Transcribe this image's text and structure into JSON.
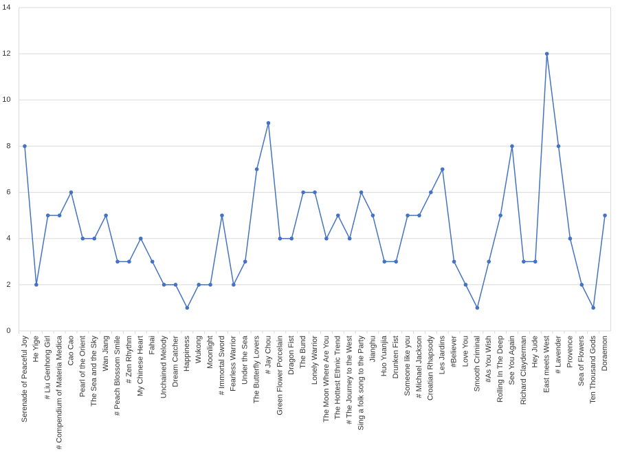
{
  "chart_data": {
    "type": "line",
    "categories": [
      "Serenade of Peaceful Joy",
      "He Yige",
      "# Liu Genhong Girl",
      "# Compendium of Materia Medica",
      "Cao Cao",
      "Pearl of the Orient",
      "The Sea and the Sky",
      "Wan Jiang",
      "# Peach Blossom Smile",
      "# Zen Rhythm",
      "My Chinese Heart",
      "Fahai",
      "Unchained Melody",
      "Dream Catcher",
      "Happiness",
      "Wukong",
      "Moonlight",
      "# Immortal Sword",
      "Fearless Warrior",
      "Under the Sea",
      "The Butterfly Lovers",
      "# Jay Chou",
      "Green Flower Porcelain",
      "Dragon Fist",
      "The Bund",
      "Lonely Warrior",
      "The Moon Where Are You",
      "The Hottest Ethnic Trend",
      "# The Journey to the West",
      "Sing a folk song to the Party",
      "Jianghu",
      "Huo Yuanjia",
      "Drunken Fist",
      "Someone like you",
      "# Michael Jackson",
      "Croatian Rhapsody",
      "Les Jardins",
      "#Believer",
      "Love You",
      "Smooth Criminal",
      "#As You Wish",
      "Rolling In The Deep",
      "See You Again",
      "Richard Clayderman",
      "Hey Jude",
      "East meets West",
      "# Lavender",
      "Provence",
      "Sea of Flowers",
      "Ten Thousand Gods",
      "Doraemon"
    ],
    "values": [
      8,
      2,
      5,
      5,
      6,
      4,
      4,
      5,
      3,
      3,
      4,
      3,
      2,
      2,
      1,
      2,
      2,
      5,
      2,
      3,
      7,
      9,
      4,
      4,
      6,
      6,
      4,
      5,
      4,
      6,
      5,
      3,
      3,
      5,
      5,
      6,
      7,
      3,
      2,
      1,
      3,
      5,
      8,
      3,
      3,
      12,
      8,
      4,
      2,
      1,
      5
    ],
    "color": "#4472c4",
    "ylim": [
      0,
      14
    ],
    "yticks": [
      0,
      2,
      4,
      6,
      8,
      10,
      12,
      14
    ],
    "grid": true
  }
}
